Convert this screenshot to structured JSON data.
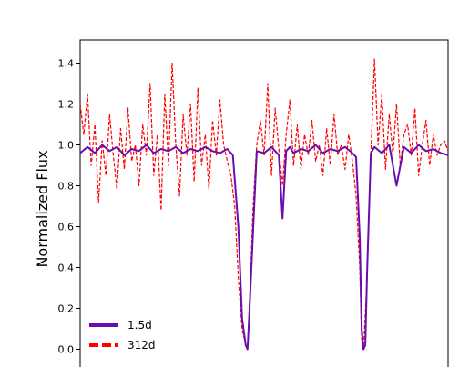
{
  "chart_data": {
    "type": "line",
    "title": "",
    "xlabel": "",
    "ylabel": "Normalized Flux",
    "ylim": [
      -0.05,
      1.5
    ],
    "xlim": [
      0,
      1
    ],
    "yticks": [
      0.0,
      0.2,
      0.4,
      0.6,
      0.8,
      1.0,
      1.2,
      1.4
    ],
    "ytick_labels": [
      "0.0",
      "0.2",
      "0.4",
      "0.6",
      "0.8",
      "1.0",
      "1.2",
      "1.4"
    ],
    "grid": false,
    "legend_position": "bottom-left",
    "series": [
      {
        "name": "1.5d",
        "color": "#6a0dad",
        "line_style": "solid",
        "x": [
          0.0,
          0.02,
          0.04,
          0.06,
          0.08,
          0.1,
          0.12,
          0.14,
          0.16,
          0.18,
          0.2,
          0.22,
          0.24,
          0.26,
          0.28,
          0.3,
          0.32,
          0.34,
          0.36,
          0.38,
          0.4,
          0.415,
          0.43,
          0.44,
          0.45,
          0.455,
          0.46,
          0.48,
          0.5,
          0.52,
          0.54,
          0.55,
          0.56,
          0.57,
          0.58,
          0.6,
          0.62,
          0.64,
          0.66,
          0.68,
          0.7,
          0.72,
          0.74,
          0.75,
          0.76,
          0.765,
          0.77,
          0.775,
          0.78,
          0.79,
          0.8,
          0.82,
          0.84,
          0.86,
          0.88,
          0.9,
          0.92,
          0.94,
          0.96,
          0.98,
          1.0
        ],
        "y": [
          0.96,
          0.99,
          0.96,
          1.0,
          0.97,
          0.99,
          0.95,
          0.98,
          0.97,
          1.0,
          0.96,
          0.98,
          0.97,
          0.99,
          0.96,
          0.98,
          0.97,
          0.99,
          0.97,
          0.96,
          0.98,
          0.95,
          0.6,
          0.15,
          0.02,
          0.0,
          0.18,
          0.97,
          0.96,
          0.99,
          0.95,
          0.64,
          0.97,
          0.99,
          0.96,
          0.98,
          0.97,
          1.0,
          0.96,
          0.98,
          0.97,
          0.99,
          0.96,
          0.94,
          0.55,
          0.1,
          0.0,
          0.02,
          0.38,
          0.96,
          0.99,
          0.96,
          1.0,
          0.8,
          0.99,
          0.96,
          1.0,
          0.97,
          0.98,
          0.96,
          0.95
        ]
      },
      {
        "name": "312d",
        "color": "#ff0000",
        "line_style": "dashed",
        "x": [
          0.0,
          0.01,
          0.02,
          0.03,
          0.04,
          0.05,
          0.06,
          0.07,
          0.08,
          0.09,
          0.1,
          0.11,
          0.12,
          0.13,
          0.14,
          0.15,
          0.16,
          0.17,
          0.18,
          0.19,
          0.2,
          0.21,
          0.22,
          0.23,
          0.24,
          0.25,
          0.26,
          0.27,
          0.28,
          0.29,
          0.3,
          0.31,
          0.32,
          0.33,
          0.34,
          0.35,
          0.36,
          0.37,
          0.38,
          0.39,
          0.4,
          0.41,
          0.42,
          0.43,
          0.44,
          0.45,
          0.455,
          0.46,
          0.47,
          0.48,
          0.49,
          0.5,
          0.51,
          0.52,
          0.53,
          0.54,
          0.55,
          0.56,
          0.57,
          0.58,
          0.59,
          0.6,
          0.61,
          0.62,
          0.63,
          0.64,
          0.65,
          0.66,
          0.67,
          0.68,
          0.69,
          0.7,
          0.71,
          0.72,
          0.73,
          0.74,
          0.75,
          0.76,
          0.765,
          0.77,
          0.78,
          0.79,
          0.8,
          0.81,
          0.82,
          0.83,
          0.84,
          0.85,
          0.86,
          0.87,
          0.88,
          0.89,
          0.9,
          0.91,
          0.92,
          0.93,
          0.94,
          0.95,
          0.96,
          0.97,
          0.98,
          0.99,
          1.0
        ],
        "y": [
          1.2,
          1.05,
          1.25,
          0.9,
          1.1,
          0.72,
          1.02,
          0.85,
          1.15,
          0.95,
          0.78,
          1.08,
          0.88,
          1.18,
          0.92,
          1.0,
          0.8,
          1.1,
          0.95,
          1.3,
          0.85,
          1.05,
          0.68,
          1.25,
          0.9,
          1.4,
          1.0,
          0.75,
          1.15,
          0.95,
          1.2,
          0.82,
          1.28,
          0.9,
          1.05,
          0.78,
          1.12,
          0.95,
          1.22,
          1.0,
          0.92,
          0.85,
          0.7,
          0.35,
          0.1,
          0.02,
          0.0,
          0.2,
          0.7,
          1.0,
          1.12,
          0.95,
          1.3,
          0.85,
          1.18,
          0.98,
          0.8,
          1.05,
          1.22,
          0.9,
          1.1,
          0.88,
          1.05,
          0.95,
          1.12,
          0.92,
          1.0,
          0.85,
          1.08,
          0.9,
          1.15,
          0.95,
          1.0,
          0.88,
          1.05,
          0.92,
          0.75,
          0.4,
          0.05,
          0.0,
          0.35,
          0.95,
          1.42,
          1.0,
          1.25,
          0.88,
          1.15,
          0.95,
          1.2,
          0.9,
          1.05,
          1.1,
          0.95,
          1.18,
          0.85,
          1.0,
          1.12,
          0.9,
          1.05,
          0.95,
          1.0,
          1.02,
          0.97
        ]
      }
    ]
  }
}
